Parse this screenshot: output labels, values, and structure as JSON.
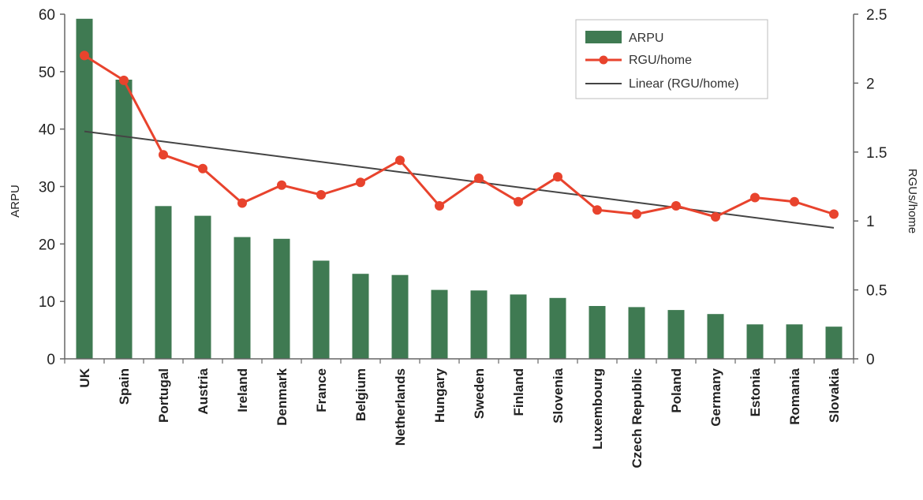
{
  "chart_data": {
    "type": "bar",
    "title": "",
    "xlabel": "",
    "ylabel": "ARPU",
    "y2label": "RGUs/home",
    "ylim": [
      0,
      60
    ],
    "y2lim": [
      0,
      2.5
    ],
    "yticks": [
      "0",
      "10",
      "20",
      "30",
      "40",
      "50",
      "60"
    ],
    "y2ticks": [
      "0",
      "0.5",
      "1",
      "1.5",
      "2",
      "2.5"
    ],
    "categories": [
      "UK",
      "Spain",
      "Portugal",
      "Austria",
      "Ireland",
      "Denmark",
      "France",
      "Belgium",
      "Netherlands",
      "Hungary",
      "Sweden",
      "Finland",
      "Slovenia",
      "Luxembourg",
      "Czech Republic",
      "Poland",
      "Germany",
      "Estonia",
      "Romania",
      "Slovakia"
    ],
    "series": [
      {
        "name": "ARPU",
        "type": "bar",
        "axis": "left",
        "color": "#3f7a52",
        "values": [
          59.2,
          48.6,
          26.6,
          24.9,
          21.2,
          20.9,
          17.1,
          14.8,
          14.6,
          12.0,
          11.9,
          11.2,
          10.6,
          9.2,
          9.0,
          8.5,
          7.8,
          6.0,
          6.0,
          5.6
        ]
      },
      {
        "name": "RGU/home",
        "type": "line",
        "axis": "right",
        "color": "#e8432d",
        "values": [
          2.2,
          2.02,
          1.48,
          1.38,
          1.13,
          1.26,
          1.19,
          1.28,
          1.44,
          1.11,
          1.31,
          1.14,
          1.32,
          1.08,
          1.05,
          1.11,
          1.03,
          1.17,
          1.14,
          1.05
        ]
      },
      {
        "name": "Linear (RGU/home)",
        "type": "trendline",
        "axis": "right",
        "color": "#444444",
        "start": 1.65,
        "end": 0.95
      }
    ],
    "legend": {
      "position": "top-right"
    },
    "grid": false
  }
}
